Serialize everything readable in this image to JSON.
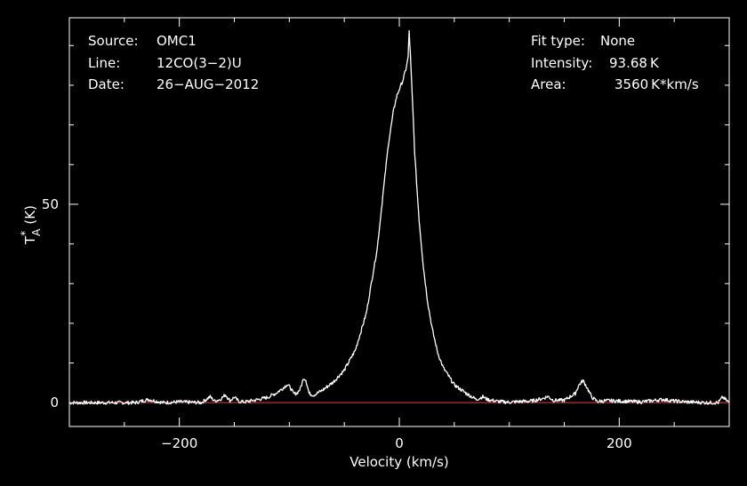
{
  "header": {
    "source_label": "Source:",
    "source_value": "OMC1",
    "line_label": "Line:",
    "line_value": "12CO(3−2)U",
    "date_label": "Date:",
    "date_value": "26−AUG−2012",
    "fit_type_label": "Fit type:",
    "fit_type_value": "None",
    "intensity_label": "Intensity:",
    "intensity_value": "93.68 K",
    "area_label": "Area:",
    "area_value": "3560 K*km/s"
  },
  "chart_data": {
    "type": "line",
    "title": "",
    "xlabel": "Velocity (km/s)",
    "ylabel_base": "T",
    "ylabel_sup": "*",
    "ylabel_sub": "A",
    "ylabel_unit": "(K)",
    "xlim": [
      -300,
      300
    ],
    "ylim": [
      -6,
      97
    ],
    "xticks": [
      -200,
      0,
      200
    ],
    "xtick_labels": [
      "−200",
      "0",
      "200"
    ],
    "yticks": [
      0,
      50
    ],
    "ytick_labels": [
      "0",
      "50"
    ],
    "colors": {
      "background": "#000000",
      "spectrum": "#ffffff",
      "baseline": "#c81e1e",
      "axes": "#ffffff"
    },
    "baseline_y": 0,
    "series": [
      {
        "x": [
          -300,
          -240,
          -228,
          -215,
          -200,
          -180,
          -172,
          -168,
          -163,
          -158,
          -154,
          -150,
          -146,
          -140,
          -130,
          -120,
          -112,
          -106,
          -102,
          -99,
          -96,
          -93,
          -90,
          -87,
          -85,
          -82,
          -78,
          -70,
          -60,
          -50,
          -40,
          -30,
          -20,
          -15,
          -10,
          -5,
          -2,
          0,
          3,
          6,
          8,
          9,
          10,
          12,
          14,
          18,
          22,
          26,
          30,
          35,
          40,
          50,
          60,
          70,
          76,
          80,
          90,
          100,
          110,
          120,
          130,
          135,
          140,
          150,
          160,
          163,
          167,
          170,
          175,
          180,
          190,
          200,
          220,
          240,
          250,
          260,
          280,
          290,
          294,
          300
        ],
        "y": [
          0,
          0,
          0.8,
          0,
          0.2,
          0,
          1.5,
          0.4,
          0.8,
          2,
          0.5,
          1.4,
          0.3,
          0.2,
          0.7,
          1.3,
          2.4,
          3.6,
          4.6,
          3.8,
          2.2,
          2.4,
          3.5,
          6.2,
          5.8,
          2.3,
          1.9,
          3.1,
          5.2,
          8.2,
          13.2,
          22.5,
          39,
          52,
          65,
          74,
          77.5,
          79,
          81,
          84,
          87,
          93.7,
          88,
          76,
          63,
          46,
          34,
          25,
          18.5,
          12.5,
          8.8,
          4.5,
          2.5,
          0.8,
          1.5,
          0.8,
          0.3,
          0.1,
          0.3,
          0.4,
          1,
          1.6,
          0.6,
          0.6,
          2.3,
          4.3,
          5.6,
          4.2,
          1.4,
          0.3,
          0.5,
          0.4,
          0.2,
          0.8,
          0.4,
          0.2,
          0,
          0,
          1.4,
          0
        ]
      }
    ]
  }
}
